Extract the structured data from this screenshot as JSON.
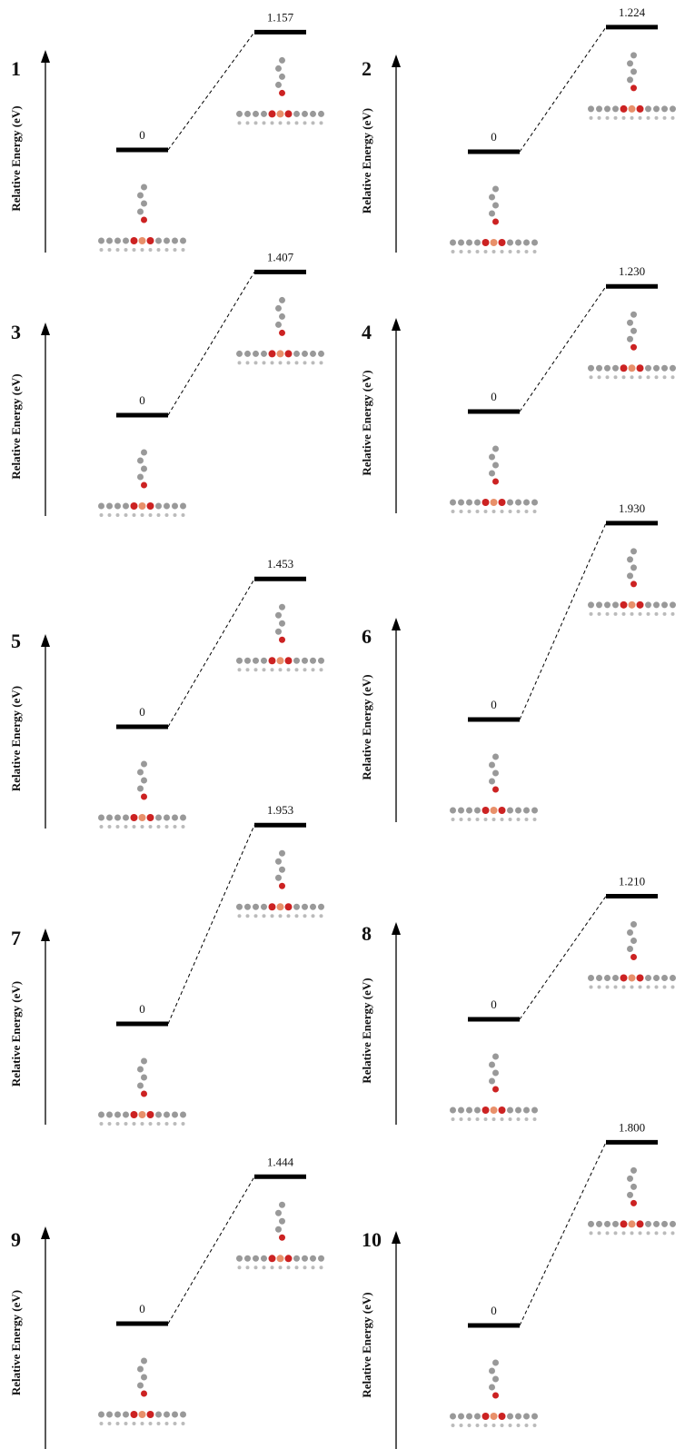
{
  "chart_data": [
    {
      "type": "energy-diagram",
      "panel": "1",
      "ylabel": "Relative Energy (eV)",
      "values": [
        0,
        1.157
      ],
      "value_labels": [
        "0",
        "1.157"
      ]
    },
    {
      "type": "energy-diagram",
      "panel": "2",
      "ylabel": "Relative Energy (eV)",
      "values": [
        0,
        1.224
      ],
      "value_labels": [
        "0",
        "1.224"
      ]
    },
    {
      "type": "energy-diagram",
      "panel": "3",
      "ylabel": "Relative Energy (eV)",
      "values": [
        0,
        1.407
      ],
      "value_labels": [
        "0",
        "1.407"
      ]
    },
    {
      "type": "energy-diagram",
      "panel": "4",
      "ylabel": "Relative Energy (eV)",
      "values": [
        0,
        1.23
      ],
      "value_labels": [
        "0",
        "1.230"
      ]
    },
    {
      "type": "energy-diagram",
      "panel": "5",
      "ylabel": "Relative Energy (eV)",
      "values": [
        0,
        1.453
      ],
      "value_labels": [
        "0",
        "1.453"
      ]
    },
    {
      "type": "energy-diagram",
      "panel": "6",
      "ylabel": "Relative Energy (eV)",
      "values": [
        0,
        1.93
      ],
      "value_labels": [
        "0",
        "1.930"
      ]
    },
    {
      "type": "energy-diagram",
      "panel": "7",
      "ylabel": "Relative Energy (eV)",
      "values": [
        0,
        1.953
      ],
      "value_labels": [
        "0",
        "1.953"
      ]
    },
    {
      "type": "energy-diagram",
      "panel": "8",
      "ylabel": "Relative Energy (eV)",
      "values": [
        0,
        1.21
      ],
      "value_labels": [
        "0",
        "1.210"
      ]
    },
    {
      "type": "energy-diagram",
      "panel": "9",
      "ylabel": "Relative Energy (eV)",
      "values": [
        0,
        1.444
      ],
      "value_labels": [
        "0",
        "1.444"
      ]
    },
    {
      "type": "energy-diagram",
      "panel": "10",
      "ylabel": "Relative Energy (eV)",
      "values": [
        0,
        1.8
      ],
      "value_labels": [
        "0",
        "1.800"
      ]
    }
  ]
}
